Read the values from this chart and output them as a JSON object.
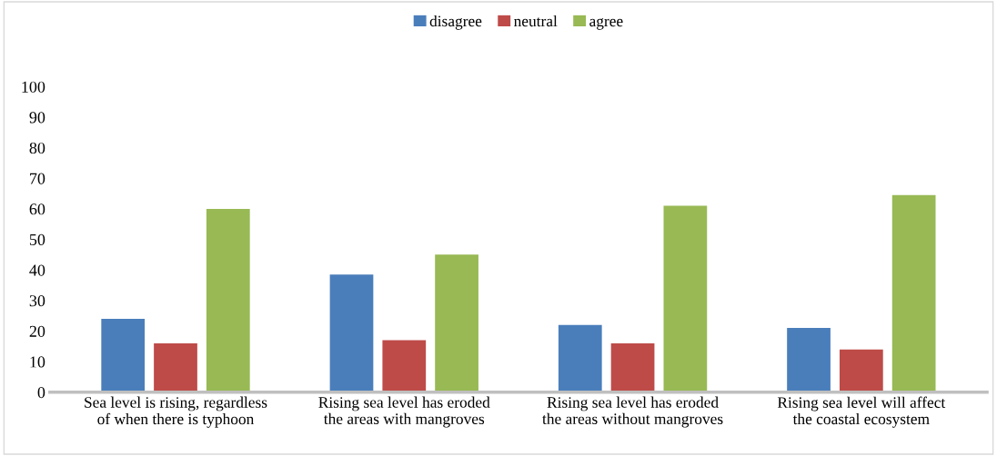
{
  "chart_data": {
    "type": "bar",
    "categories": [
      "Sea level is rising, regardless\nof when there is typhoon",
      "Rising sea level has eroded\nthe areas with mangroves",
      "Rising sea level has eroded\nthe areas without mangroves",
      "Rising sea level will affect\nthe coastal ecosystem"
    ],
    "series": [
      {
        "name": "disagree",
        "color": "#4a7ebb",
        "values": [
          24,
          38.5,
          22,
          21
        ]
      },
      {
        "name": "neutral",
        "color": "#be4b48",
        "values": [
          16,
          17,
          16,
          14
        ]
      },
      {
        "name": "agree",
        "color": "#98b954",
        "values": [
          60,
          45,
          61,
          64.5
        ]
      }
    ],
    "ylim": [
      0,
      100
    ],
    "yticks": [
      0,
      10,
      20,
      30,
      40,
      50,
      60,
      70,
      80,
      90,
      100
    ],
    "grid": false,
    "legend": "top"
  }
}
